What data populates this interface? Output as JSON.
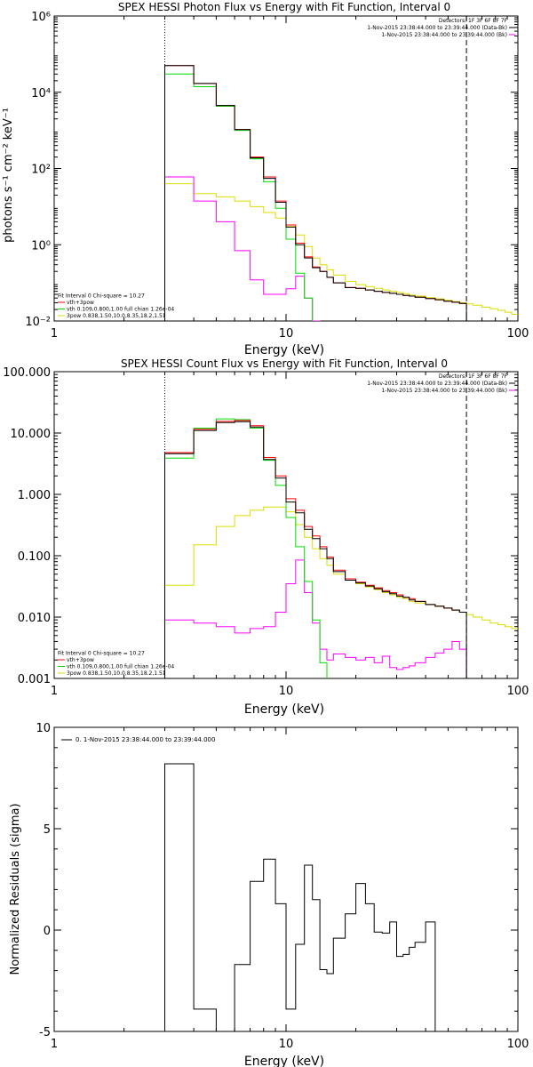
{
  "colors": {
    "total": "#000000",
    "vth_plus_3pow": "#ff0000",
    "vth": "#00dd00",
    "pow": "#dddd00",
    "background": "#ff00ff",
    "range_marker": "#000000"
  },
  "chart_data": [
    {
      "type": "line",
      "title": "SPEX HESSI Photon Flux vs Energy with Fit Function, Interval 0",
      "xlabel": "Energy (keV)",
      "ylabel": "photons s⁻¹ cm⁻² keV⁻¹",
      "xscale": "log",
      "yscale": "log",
      "xlim": [
        1,
        100
      ],
      "ylim": [
        0.01,
        1000000
      ],
      "xticks": [
        {
          "v": 1,
          "label": "1"
        },
        {
          "v": 10,
          "label": "10"
        },
        {
          "v": 100,
          "label": "100"
        }
      ],
      "yticks": [
        {
          "v": 0.01,
          "label": "10⁻²"
        },
        {
          "v": 1,
          "label": "10⁰"
        },
        {
          "v": 100,
          "label": "10²"
        },
        {
          "v": 10000,
          "label": "10⁴"
        },
        {
          "v": 1000000,
          "label": "10⁶"
        }
      ],
      "fit_range_keV": [
        3,
        60
      ],
      "info_top_right": [
        "Detectors: 1F 3F 6F 8F 7F",
        "1-Nov-2015 23:38:44.000 to 23:39:44.000 (Data-Bk)",
        "1-Nov-2015 23:38:44.000 to 23:39:44.000 (Bk)"
      ],
      "info_bottom_left": [
        "Fit Interval 0   Chi-square = 10.27",
        "vth+3pow",
        "vth 0.109,0.800,1.00  full chian 1.26e-04",
        "3pow 0.838,1.50,10.0,8.35,18.2,1.51"
      ],
      "bin_edges": [
        3,
        4,
        5,
        6,
        7,
        8,
        9,
        10,
        11,
        12,
        13,
        14,
        15,
        16,
        18,
        20,
        22,
        24,
        26,
        28,
        30,
        32,
        34,
        36,
        40,
        44,
        48,
        52,
        56,
        60,
        64,
        70,
        76,
        82,
        88,
        94,
        100
      ],
      "series": [
        {
          "name": "total",
          "role": "total",
          "values": [
            50000,
            17000,
            4500,
            1050,
            190,
            55,
            13,
            2.9,
            1.0,
            0.45,
            0.25,
            0.2,
            0.14,
            0.1,
            0.075,
            0.072,
            0.065,
            0.06,
            0.056,
            0.053,
            0.05,
            0.047,
            0.045,
            0.042,
            0.039,
            0.036,
            0.033,
            0.031,
            0.029
          ]
        },
        {
          "name": "vth+3pow",
          "role": "vth_plus_3pow",
          "values": [
            50000,
            17000,
            4500,
            1060,
            200,
            60,
            14,
            3.3,
            1.1,
            0.48,
            0.26,
            0.2,
            0.14,
            0.1,
            0.076,
            0.072,
            0.065,
            0.06,
            0.056,
            0.053,
            0.05,
            0.047,
            0.045,
            0.042,
            0.039,
            0.036,
            0.033,
            0.031,
            0.029
          ]
        },
        {
          "name": "vth",
          "role": "vth",
          "values": [
            30000,
            14000,
            4300,
            1000,
            180,
            45,
            9,
            1.4,
            0.18,
            0.04,
            0.008,
            0.005,
            0.005,
            0.005,
            0.005,
            0.005,
            0.005,
            0.005,
            0.005,
            0.005,
            0.005,
            0.005,
            0.005,
            0.005,
            0.005,
            0.005,
            0.005,
            0.005,
            0.005
          ]
        },
        {
          "name": "3pow",
          "role": "pow",
          "values": [
            40,
            22,
            18,
            14,
            10,
            7,
            5,
            3,
            1.8,
            0.9,
            0.45,
            0.3,
            0.22,
            0.16,
            0.11,
            0.09,
            0.08,
            0.072,
            0.065,
            0.06,
            0.056,
            0.052,
            0.048,
            0.045,
            0.041,
            0.038,
            0.035,
            0.032,
            0.03,
            0.028,
            0.026,
            0.023,
            0.021,
            0.019,
            0.017,
            0.015
          ]
        },
        {
          "name": "1-Nov-2015 23:38:44.000 to 23:39:44.000 (Bk)",
          "role": "background",
          "values": [
            60,
            14,
            4,
            0.7,
            0.12,
            0.05,
            0.05,
            0.07,
            0.15,
            0.04,
            0.01,
            0.005,
            0.006,
            0.006,
            0.007,
            0.006,
            0.007,
            0.006,
            0.006,
            0.007,
            0.006,
            0.005,
            0.006,
            0.005,
            0.005,
            0.005,
            0.006,
            0.005,
            0.008
          ]
        }
      ]
    },
    {
      "type": "line",
      "title": "SPEX HESSI Count Flux vs Energy with Fit Function, Interval 0",
      "xlabel": "Energy (keV)",
      "ylabel": "",
      "xscale": "log",
      "yscale": "log",
      "xlim": [
        1,
        100
      ],
      "ylim": [
        0.001,
        100
      ],
      "xticks": [
        {
          "v": 1,
          "label": "1"
        },
        {
          "v": 10,
          "label": "10"
        },
        {
          "v": 100,
          "label": "100"
        }
      ],
      "yticks": [
        {
          "v": 0.001,
          "label": "0.001"
        },
        {
          "v": 0.01,
          "label": "0.010"
        },
        {
          "v": 0.1,
          "label": "0.100"
        },
        {
          "v": 1,
          "label": "1.000"
        },
        {
          "v": 10,
          "label": "10.000"
        },
        {
          "v": 100,
          "label": "100.000"
        }
      ],
      "fit_range_keV": [
        3,
        60
      ],
      "info_top_right": [
        "Detectors: 1F 3F 6F 8F 7F",
        "1-Nov-2015 23:38:44.000 to 23:39:44.000 (Data-Bk)",
        "1-Nov-2015 23:38:44.000 to 23:39:44.000 (Bk)"
      ],
      "info_bottom_left": [
        "Fit Interval 0   Chi-square = 10.27",
        "vth+3pow",
        "vth 0.109,0.800,1.00  full chian 1.26e-04",
        "3pow 0.838,1.50,10.0,8.35,18.2,1.51"
      ],
      "bin_edges": [
        3,
        4,
        5,
        6,
        7,
        8,
        9,
        10,
        11,
        12,
        13,
        14,
        15,
        16,
        18,
        20,
        22,
        24,
        26,
        28,
        30,
        32,
        34,
        36,
        40,
        44,
        48,
        52,
        56,
        60,
        64,
        70,
        76,
        82,
        88,
        94,
        100
      ],
      "series": [
        {
          "name": "total",
          "role": "total",
          "values": [
            4.6,
            11.0,
            14.8,
            15.3,
            12.5,
            3.7,
            1.85,
            0.75,
            0.5,
            0.27,
            0.19,
            0.13,
            0.09,
            0.055,
            0.04,
            0.036,
            0.032,
            0.029,
            0.026,
            0.024,
            0.022,
            0.021,
            0.019,
            0.018,
            0.016,
            0.015,
            0.014,
            0.013,
            0.012
          ]
        },
        {
          "name": "vth+3pow",
          "role": "vth_plus_3pow",
          "values": [
            4.8,
            11.5,
            15.5,
            16.0,
            13.2,
            4.0,
            2.0,
            0.85,
            0.55,
            0.3,
            0.21,
            0.14,
            0.095,
            0.058,
            0.042,
            0.037,
            0.033,
            0.03,
            0.027,
            0.025,
            0.023,
            0.021,
            0.02,
            0.018,
            0.016,
            0.015,
            0.014,
            0.013,
            0.012
          ]
        },
        {
          "name": "vth",
          "role": "vth",
          "values": [
            3.9,
            12.0,
            17.0,
            16.5,
            12.0,
            3.6,
            1.4,
            0.42,
            0.14,
            0.038,
            0.009,
            0.0018,
            0.0006,
            0.0006,
            0.0006,
            0.0006,
            0.0006,
            0.0006,
            0.0006,
            0.0006,
            0.0006,
            0.0006,
            0.0006,
            0.0006,
            0.0006,
            0.0006,
            0.0006,
            0.0006,
            0.0006
          ]
        },
        {
          "name": "3pow",
          "role": "pow",
          "values": [
            0.033,
            0.15,
            0.3,
            0.45,
            0.55,
            0.62,
            0.62,
            0.52,
            0.32,
            0.2,
            0.13,
            0.09,
            0.07,
            0.05,
            0.04,
            0.035,
            0.031,
            0.028,
            0.025,
            0.023,
            0.021,
            0.02,
            0.018,
            0.017,
            0.016,
            0.015,
            0.014,
            0.013,
            0.012,
            0.011,
            0.01,
            0.009,
            0.008,
            0.0075,
            0.007,
            0.0065
          ]
        },
        {
          "name": "1-Nov-2015 23:38:44.000 to 23:39:44.000 (Bk)",
          "role": "background",
          "values": [
            0.009,
            0.008,
            0.007,
            0.0055,
            0.0065,
            0.007,
            0.012,
            0.035,
            0.085,
            0.025,
            0.008,
            0.003,
            0.002,
            0.0025,
            0.0022,
            0.002,
            0.0022,
            0.0018,
            0.0023,
            0.0015,
            0.0014,
            0.0015,
            0.0016,
            0.0018,
            0.0022,
            0.0026,
            0.003,
            0.004,
            0.003
          ]
        }
      ]
    },
    {
      "type": "line",
      "title": "",
      "xlabel": "Energy (keV)",
      "ylabel": "Normalized Residuals (sigma)",
      "xscale": "log",
      "yscale": "linear",
      "xlim": [
        1,
        100
      ],
      "ylim": [
        -5,
        10
      ],
      "xticks": [
        {
          "v": 1,
          "label": "1"
        },
        {
          "v": 10,
          "label": "10"
        },
        {
          "v": 100,
          "label": "100"
        }
      ],
      "yticks": [
        {
          "v": -5,
          "label": "-5"
        },
        {
          "v": 0,
          "label": "0"
        },
        {
          "v": 5,
          "label": "5"
        },
        {
          "v": 10,
          "label": "10"
        }
      ],
      "legend": "0.  1-Nov-2015 23:38:44.000 to 23:39:44.000",
      "bin_edges": [
        3,
        4,
        5,
        6,
        7,
        8,
        9,
        10,
        11,
        12,
        13,
        14,
        15,
        16,
        18,
        20,
        22,
        24,
        26,
        28,
        30,
        32,
        34,
        36,
        40,
        44,
        48,
        52,
        56,
        60
      ],
      "series": [
        {
          "name": "0.  1-Nov-2015 23:38:44.000 to 23:39:44.000",
          "role": "total",
          "values": [
            8.2,
            -3.9,
            -5.1,
            -1.7,
            2.4,
            3.5,
            1.3,
            -3.9,
            -0.7,
            3.2,
            1.5,
            -1.95,
            -2.15,
            -0.4,
            0.8,
            2.3,
            1.3,
            -0.1,
            -0.15,
            0.4,
            -1.3,
            -1.2,
            -0.85,
            -0.6,
            0.4
          ]
        }
      ]
    }
  ]
}
